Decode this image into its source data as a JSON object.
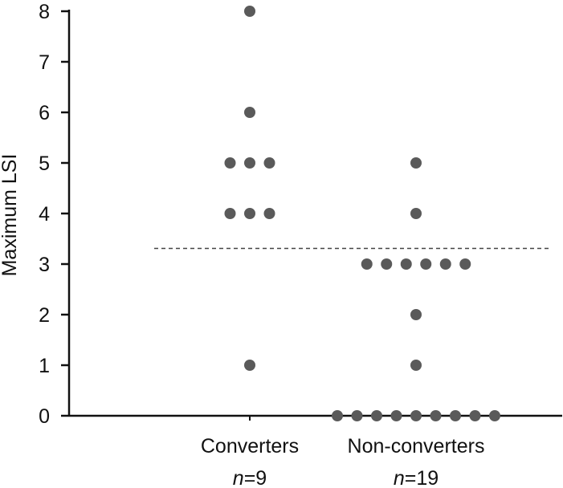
{
  "chart_data": {
    "type": "scatter",
    "subtype": "dot-plot",
    "ylabel": "Maximum LSI",
    "ylim": [
      0,
      8
    ],
    "yticks": [
      0,
      1,
      2,
      3,
      4,
      5,
      6,
      7,
      8
    ],
    "grid": false,
    "threshold": 3.5,
    "threshold_style": "dashed",
    "dot_color": "#5a5a5a",
    "groups": [
      {
        "label": "Converters",
        "n_prefix": "n",
        "n_value": "=9",
        "values": [
          8,
          6,
          5,
          5,
          5,
          4,
          4,
          4,
          1
        ]
      },
      {
        "label": "Non-converters",
        "n_prefix": "n",
        "n_value": "=19",
        "values": [
          5,
          4,
          3,
          3,
          3,
          3,
          3,
          3,
          2,
          1,
          0,
          0,
          0,
          0,
          0,
          0,
          0,
          0,
          0
        ]
      }
    ]
  }
}
